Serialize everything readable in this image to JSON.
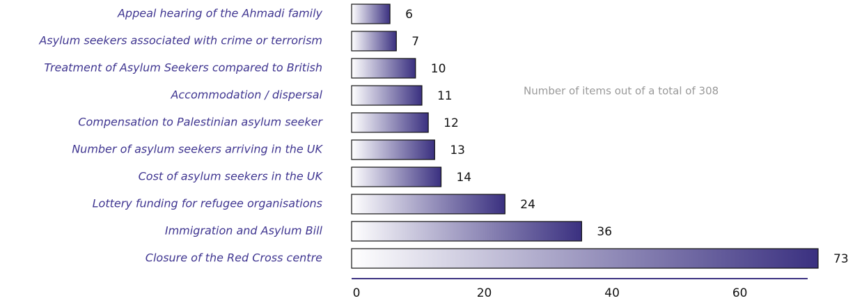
{
  "chart_data": {
    "type": "bar",
    "orientation": "horizontal",
    "categories": [
      "Appeal hearing of the Ahmadi family",
      "Asylum seekers associated with crime or terrorism",
      "Treatment of Asylum Seekers compared to British",
      "Accommodation / dispersal",
      "Compensation to Palestinian asylum seeker",
      "Number of asylum seekers arriving in the UK",
      "Cost of asylum seekers in the UK",
      "Lottery funding for refugee organisations",
      "Immigration and Asylum Bill",
      "Closure of the Red Cross centre"
    ],
    "values": [
      6,
      7,
      10,
      11,
      12,
      13,
      14,
      24,
      36,
      73
    ],
    "color": "#3a3080",
    "xlim": [
      0,
      73
    ],
    "xticks": [
      0,
      20,
      40,
      60
    ],
    "annotation": "Number of items out of a total of 308"
  }
}
